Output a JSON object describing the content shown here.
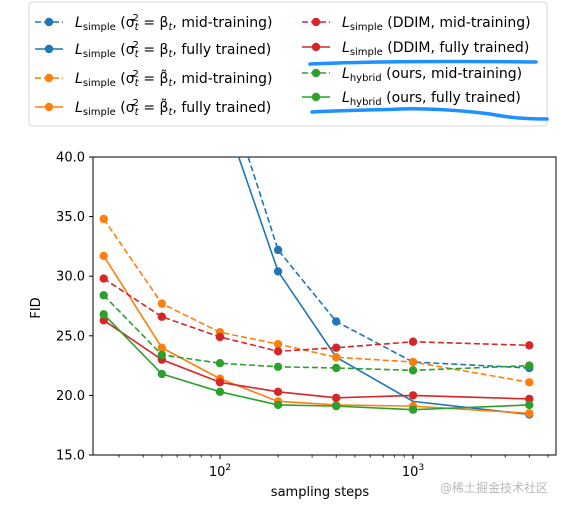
{
  "chart_data": {
    "type": "line",
    "xlabel": "sampling steps",
    "ylabel": "FID",
    "x_scale": "log",
    "xlim": [
      22,
      5500
    ],
    "ylim": [
      15.0,
      40.0
    ],
    "y_ticks": [
      "15.0",
      "20.0",
      "25.0",
      "30.0",
      "35.0",
      "40.0"
    ],
    "x_ticks": [
      {
        "value": 100,
        "base": "10",
        "exp": "2"
      },
      {
        "value": 1000,
        "base": "10",
        "exp": "3"
      }
    ],
    "x": [
      25,
      50,
      100,
      200,
      400,
      1000,
      4000
    ],
    "legend_position": "top",
    "series": [
      {
        "name": "L_simple (σ_t² = β_t, mid-training)",
        "legend": {
          "main": "L",
          "sub": "simple",
          "rest": " (σ",
          "rest_sub": "t",
          "rest_sup": "2",
          "tail": " = β",
          "tail_sub": "t",
          "end": ", mid-training)"
        },
        "color": "#1f77b4",
        "dashed": true,
        "values": [
          null,
          null,
          null,
          32.2,
          26.2,
          22.8,
          22.3
        ],
        "enter_from": {
          "x": 140,
          "y": 40.0
        }
      },
      {
        "name": "L_simple (σ_t² = β_t, fully trained)",
        "legend": {
          "main": "L",
          "sub": "simple",
          "rest": " (σ",
          "rest_sub": "t",
          "rest_sup": "2",
          "tail": " = β",
          "tail_sub": "t",
          "end": ", fully trained)"
        },
        "color": "#1f77b4",
        "dashed": false,
        "values": [
          null,
          null,
          null,
          30.4,
          null,
          null,
          18.4
        ],
        "enter_from": {
          "x": 125,
          "y": 40.0
        },
        "line_points": [
          [
            125,
            40.0
          ],
          [
            200,
            30.4
          ],
          [
            400,
            23.2
          ],
          [
            1000,
            19.5
          ],
          [
            4000,
            18.4
          ]
        ]
      },
      {
        "name": "L_simple (σ_t² = β̃_t, mid-training)",
        "legend": {
          "main": "L",
          "sub": "simple",
          "rest": " (σ",
          "rest_sub": "t",
          "rest_sup": "2",
          "tail": " = β̃",
          "tail_sub": "t",
          "end": ", mid-training)"
        },
        "color": "#ff7f0e",
        "dashed": true,
        "values": [
          34.8,
          27.7,
          25.3,
          24.3,
          23.2,
          22.8,
          21.1
        ]
      },
      {
        "name": "L_simple (σ_t² = β̃_t, fully trained)",
        "legend": {
          "main": "L",
          "sub": "simple",
          "rest": " (σ",
          "rest_sub": "t",
          "rest_sup": "2",
          "tail": " = β̃",
          "tail_sub": "t",
          "end": ", fully trained)"
        },
        "color": "#ff7f0e",
        "dashed": false,
        "values": [
          31.7,
          24.0,
          21.4,
          19.5,
          19.2,
          19.1,
          18.5
        ]
      },
      {
        "name": "L_simple (DDIM, mid-training)",
        "legend": {
          "main": "L",
          "sub": "simple",
          "end": " (DDIM, mid-training)"
        },
        "color": "#d62728",
        "dashed": true,
        "values": [
          29.8,
          26.6,
          24.9,
          23.7,
          24.0,
          24.5,
          24.2
        ]
      },
      {
        "name": "L_simple (DDIM, fully trained)",
        "legend": {
          "main": "L",
          "sub": "simple",
          "end": " (DDIM, fully trained)"
        },
        "color": "#d62728",
        "dashed": false,
        "values": [
          26.3,
          23.0,
          21.1,
          20.3,
          19.8,
          20.0,
          19.7
        ]
      },
      {
        "name": "L_hybrid (ours, mid-training)",
        "legend": {
          "main": "L",
          "sub": "hybrid",
          "end": " (ours, mid-training)"
        },
        "color": "#2ca02c",
        "dashed": true,
        "values": [
          28.4,
          23.4,
          22.7,
          22.4,
          22.3,
          22.1,
          22.5
        ]
      },
      {
        "name": "L_hybrid (ours, fully trained)",
        "legend": {
          "main": "L",
          "sub": "hybrid",
          "end": " (ours, fully trained)"
        },
        "color": "#2ca02c",
        "dashed": false,
        "values": [
          26.8,
          21.8,
          20.3,
          19.2,
          19.1,
          18.8,
          19.2
        ]
      }
    ],
    "annotation_color": "#1e90ff",
    "watermark": "@稀土掘金技术社区"
  }
}
